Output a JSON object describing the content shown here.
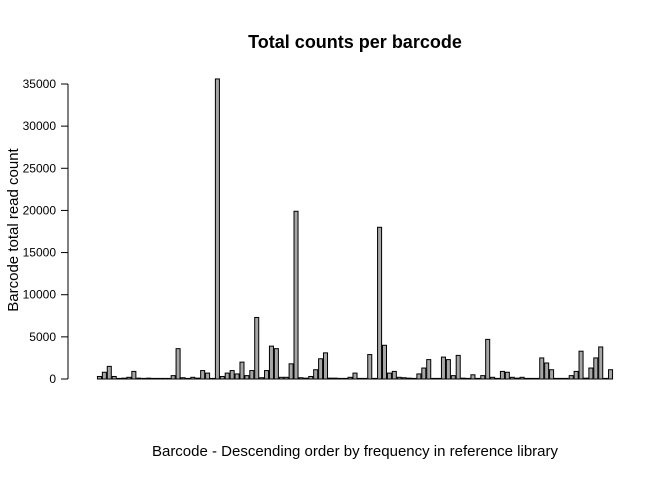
{
  "chart_data": {
    "type": "bar",
    "title": "Total counts per barcode",
    "xlabel": "Barcode - Descending order by frequency in reference library",
    "ylabel": "Barcode total read count",
    "ylim": [
      0,
      35000
    ],
    "yticks": [
      0,
      5000,
      10000,
      15000,
      20000,
      25000,
      30000,
      35000
    ],
    "grid": false,
    "legend": "none",
    "bar_fill": "#a6a6a6",
    "bar_stroke": "#000000",
    "values": [
      300,
      800,
      1500,
      300,
      50,
      100,
      200,
      900,
      100,
      50,
      100,
      50,
      50,
      50,
      50,
      400,
      3600,
      150,
      50,
      200,
      100,
      1000,
      700,
      50,
      35600,
      300,
      700,
      1000,
      600,
      2000,
      400,
      1000,
      7300,
      150,
      1000,
      3900,
      3600,
      200,
      200,
      1800,
      19900,
      150,
      100,
      300,
      1100,
      2400,
      3100,
      100,
      100,
      50,
      50,
      200,
      700,
      50,
      50,
      2900,
      50,
      18000,
      4000,
      700,
      900,
      200,
      150,
      100,
      50,
      600,
      1300,
      2300,
      50,
      50,
      2600,
      2300,
      400,
      2800,
      100,
      50,
      500,
      50,
      400,
      4700,
      200,
      50,
      900,
      800,
      200,
      100,
      200,
      50,
      50,
      50,
      2500,
      1900,
      1100,
      50,
      50,
      50,
      400,
      900,
      3300,
      100,
      1300,
      2500,
      3800,
      50,
      1100
    ]
  }
}
